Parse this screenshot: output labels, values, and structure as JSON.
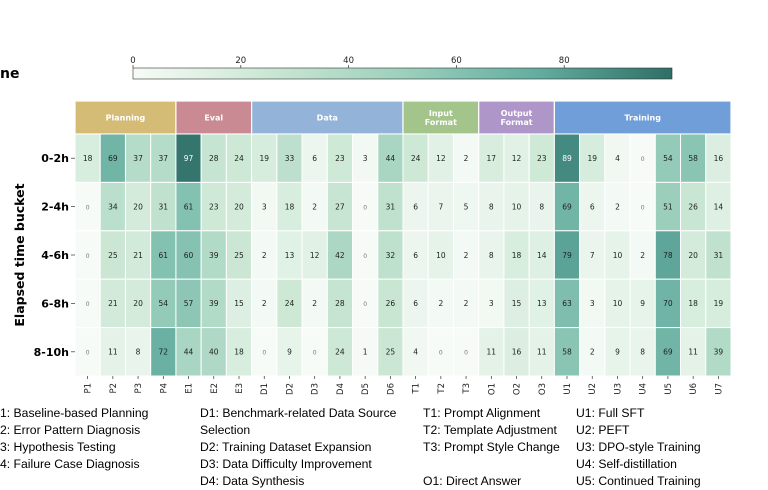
{
  "chart_data": {
    "type": "heatmap",
    "partial_title": "ne",
    "ylabel": "Elapsed time bucket",
    "rows": [
      "0-2h",
      "2-4h",
      "4-6h",
      "6-8h",
      "8-10h"
    ],
    "groups": [
      {
        "label": "Planning",
        "color": "#d4bc76",
        "columns": [
          "P1",
          "P2",
          "P3",
          "P4"
        ]
      },
      {
        "label": "Eval",
        "color": "#c98a93",
        "columns": [
          "E1",
          "E2",
          "E3"
        ]
      },
      {
        "label": "Data",
        "color": "#93b4d8",
        "columns": [
          "D1",
          "D2",
          "D3",
          "D4",
          "D5",
          "D6"
        ]
      },
      {
        "label": "Input\nFormat",
        "color": "#a3c48a",
        "columns": [
          "T1",
          "T2",
          "T3"
        ]
      },
      {
        "label": "Output\nFormat",
        "color": "#ae97c8",
        "columns": [
          "O1",
          "O2",
          "O3"
        ]
      },
      {
        "label": "Training",
        "color": "#6f9ed8",
        "columns": [
          "U1",
          "U2",
          "U3",
          "U4",
          "U5",
          "U6",
          "U7"
        ]
      }
    ],
    "columns": [
      "P1",
      "P2",
      "P3",
      "P4",
      "E1",
      "E2",
      "E3",
      "D1",
      "D2",
      "D3",
      "D4",
      "D5",
      "D6",
      "T1",
      "T2",
      "T3",
      "O1",
      "O2",
      "O3",
      "U1",
      "U2",
      "U3",
      "U4",
      "U5",
      "U6",
      "U7"
    ],
    "values": [
      [
        18,
        69,
        37,
        37,
        97,
        28,
        24,
        19,
        33,
        6,
        23,
        3,
        44,
        24,
        12,
        2,
        17,
        12,
        23,
        89,
        19,
        4,
        0,
        54,
        58,
        16
      ],
      [
        0,
        34,
        20,
        31,
        61,
        23,
        20,
        3,
        18,
        2,
        27,
        0,
        31,
        6,
        7,
        5,
        8,
        10,
        8,
        69,
        6,
        2,
        0,
        51,
        26,
        14
      ],
      [
        0,
        25,
        21,
        61,
        60,
        39,
        25,
        2,
        13,
        12,
        42,
        0,
        32,
        6,
        10,
        2,
        8,
        18,
        14,
        79,
        7,
        10,
        2,
        78,
        20,
        31
      ],
      [
        0,
        21,
        20,
        54,
        57,
        39,
        15,
        2,
        24,
        2,
        28,
        0,
        26,
        6,
        2,
        2,
        3,
        15,
        13,
        63,
        3,
        10,
        9,
        70,
        18,
        19
      ],
      [
        0,
        11,
        8,
        72,
        44,
        40,
        18,
        0,
        9,
        0,
        24,
        1,
        25,
        4,
        0,
        0,
        11,
        16,
        11,
        58,
        2,
        9,
        8,
        69,
        11,
        39
      ]
    ],
    "colorbar": {
      "min": 0,
      "max": 100,
      "ticks": [
        0,
        20,
        40,
        60,
        80
      ],
      "colors": [
        "#f7fbf7",
        "#cbe7d4",
        "#9dd0bd",
        "#63ada0",
        "#2e6f66"
      ]
    },
    "legend_columns": [
      [
        "1: Baseline-based Planning",
        "2: Error Pattern Diagnosis",
        "3: Hypothesis Testing",
        "4: Failure Case Diagnosis"
      ],
      [
        "D1: Benchmark-related Data Source",
        "Selection",
        "D2: Training Dataset Expansion",
        "D3: Data Difficulty Improvement",
        "D4: Data Synthesis"
      ],
      [
        "T1: Prompt Alignment",
        "T2: Template Adjustment",
        "T3: Prompt Style Change",
        "",
        "O1: Direct Answer"
      ],
      [
        "U1: Full SFT",
        "U2: PEFT",
        "U3: DPO-style Training",
        "U4: Self-distillation",
        "U5: Continued Training"
      ]
    ]
  }
}
